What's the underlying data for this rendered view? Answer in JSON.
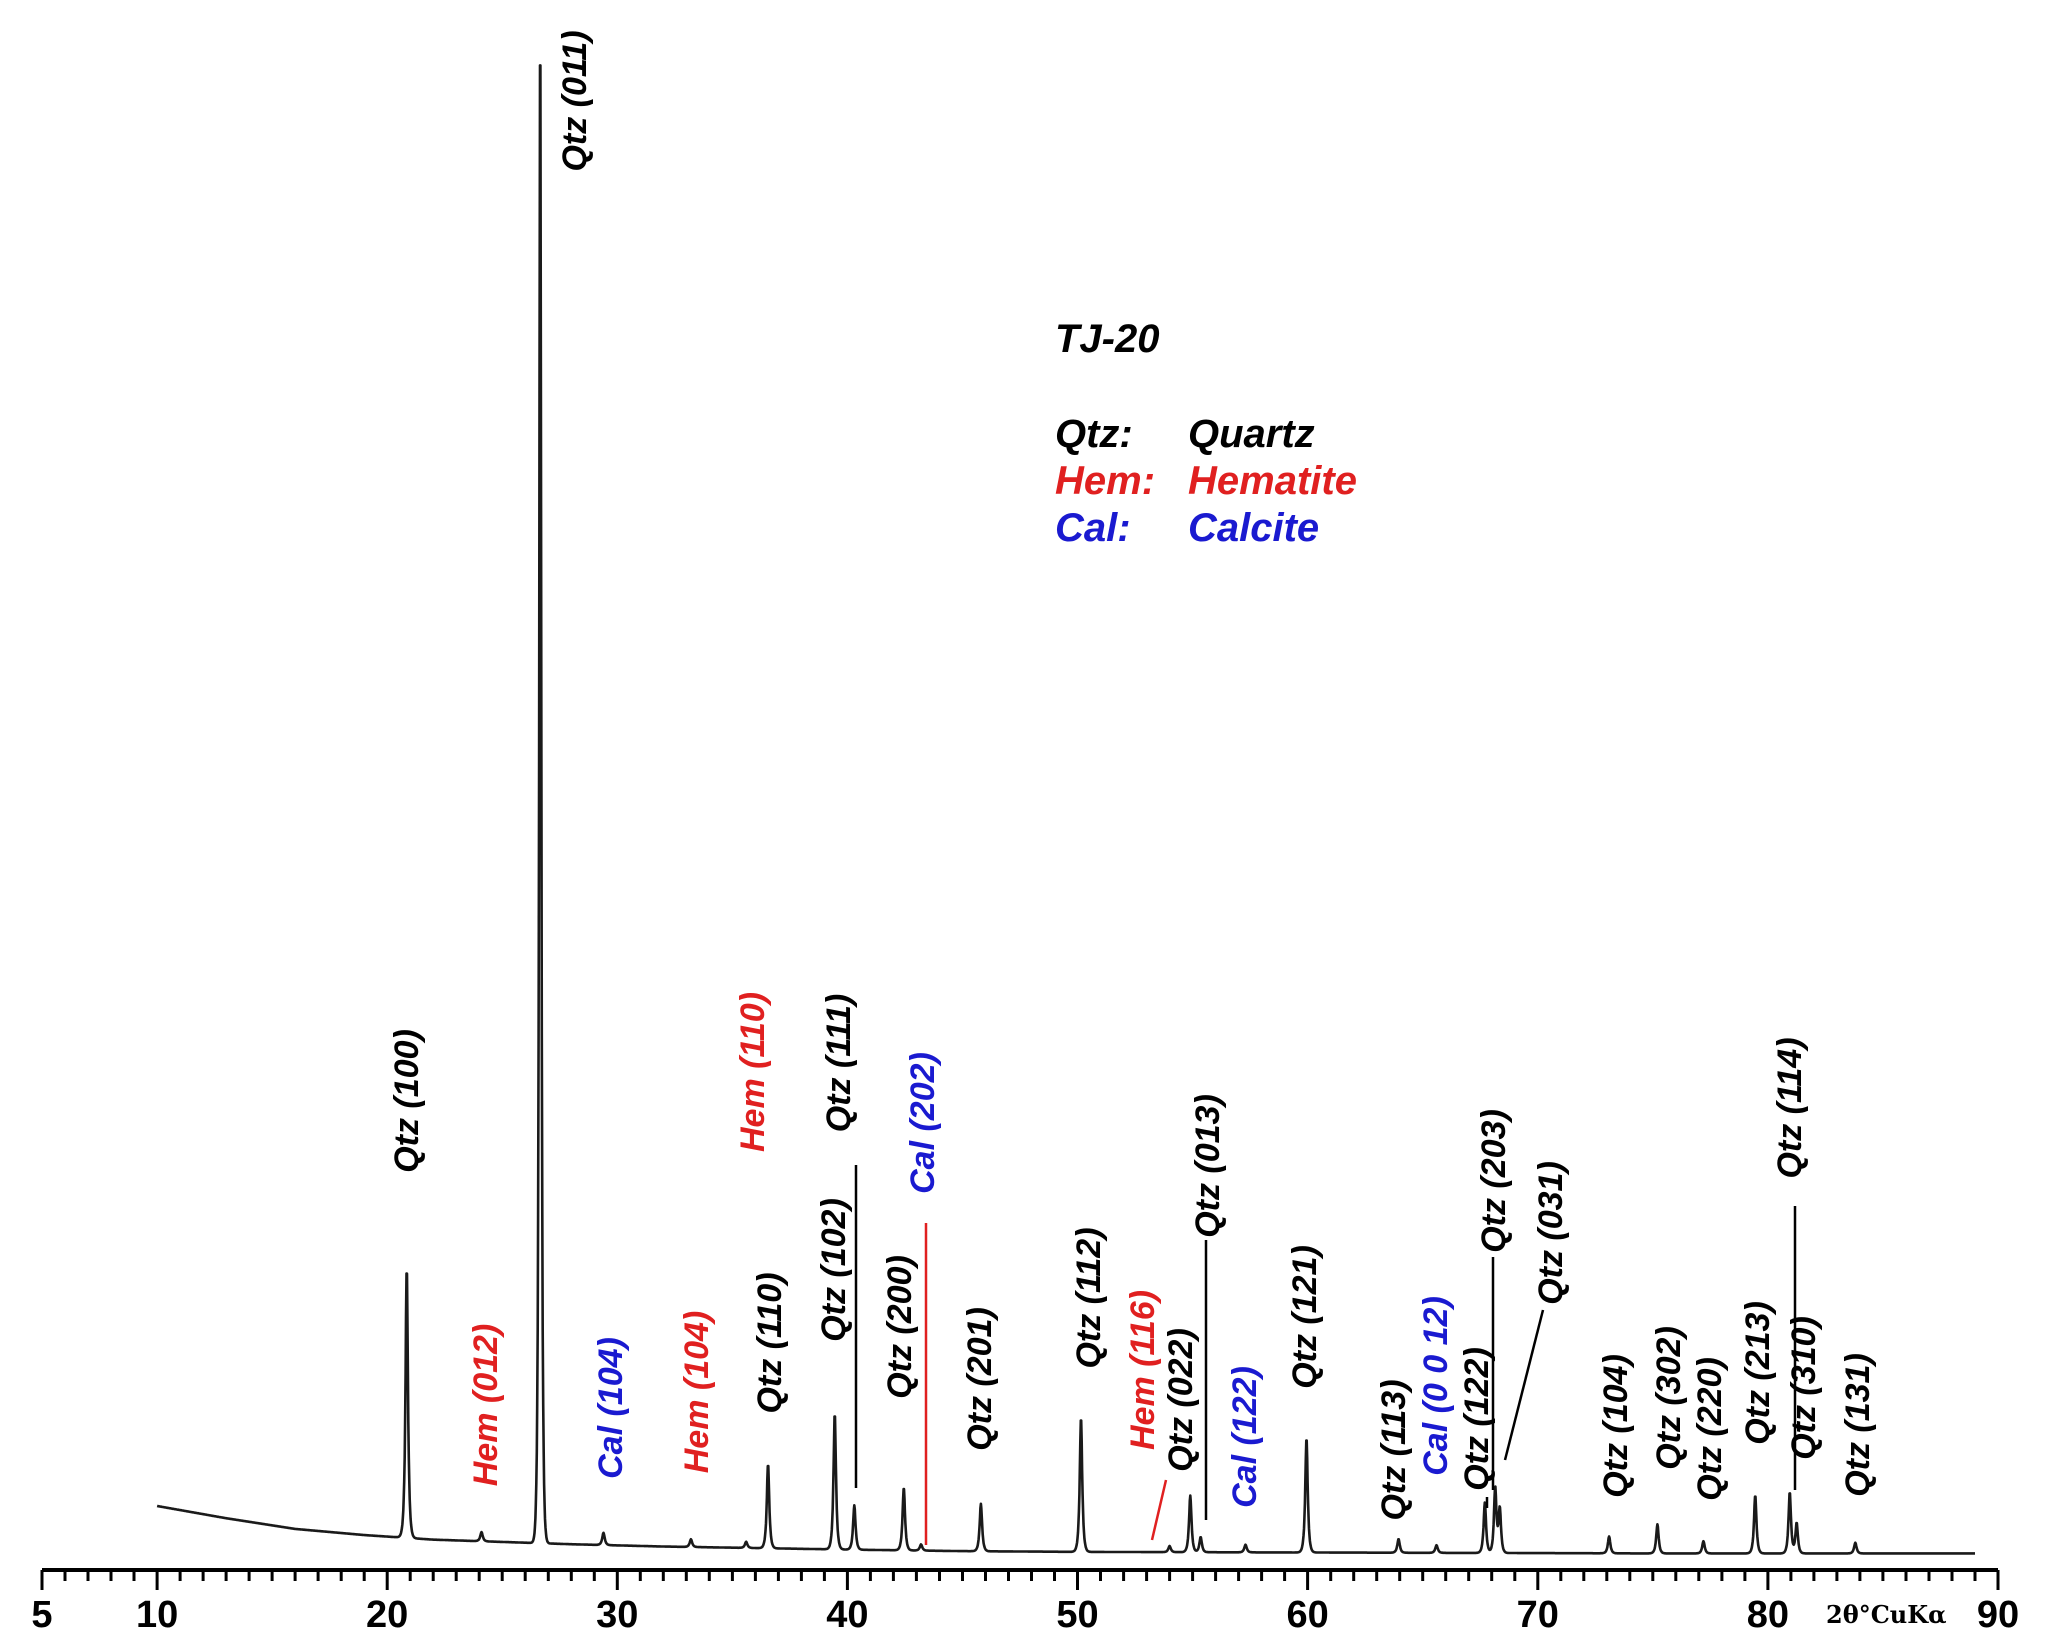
{
  "chart_data": {
    "type": "line",
    "title": "TJ-20",
    "xlabel": "2θ°CuKα",
    "ylabel": "",
    "xlim": [
      5,
      90
    ],
    "ylim": [
      0,
      100
    ],
    "x_ticks": [
      {
        "value": 5,
        "label": "5"
      },
      {
        "value": 10,
        "label": "10"
      },
      {
        "value": 20,
        "label": "20"
      },
      {
        "value": 30,
        "label": "30"
      },
      {
        "value": 40,
        "label": "40"
      },
      {
        "value": 50,
        "label": "50"
      },
      {
        "value": 60,
        "label": "60"
      },
      {
        "value": 70,
        "label": "70"
      },
      {
        "value": 80,
        "label": "80"
      },
      {
        "value": 90,
        "label": "90"
      }
    ],
    "legend": [
      {
        "abbr": "Qtz:",
        "name": "Quartz",
        "color": "#000000"
      },
      {
        "abbr": "Hem:",
        "name": "Hematite",
        "color": "#e02020"
      },
      {
        "abbr": "Cal:",
        "name": "Calcite",
        "color": "#1a1ad0"
      }
    ],
    "colors": {
      "Qtz": "#000000",
      "Hem": "#e02020",
      "Cal": "#1a1ad0"
    },
    "baseline": {
      "x": [
        10,
        13,
        16,
        19,
        22,
        25,
        28,
        32,
        36,
        40,
        45,
        50,
        55,
        60,
        65,
        70,
        75,
        80,
        85,
        89
      ],
      "y": [
        3.4,
        2.6,
        1.9,
        1.5,
        1.2,
        1.05,
        0.9,
        0.75,
        0.65,
        0.55,
        0.45,
        0.4,
        0.38,
        0.36,
        0.34,
        0.32,
        0.3,
        0.3,
        0.3,
        0.3
      ]
    },
    "series": [
      {
        "name": "TJ-20",
        "peaks": [
          {
            "x": 20.85,
            "y": 17.7
          },
          {
            "x": 24.1,
            "y": 0.6
          },
          {
            "x": 26.65,
            "y": 100
          },
          {
            "x": 29.4,
            "y": 0.8
          },
          {
            "x": 33.2,
            "y": 0.5
          },
          {
            "x": 35.6,
            "y": 0.4
          },
          {
            "x": 36.55,
            "y": 5.5
          },
          {
            "x": 39.45,
            "y": 8.9
          },
          {
            "x": 40.3,
            "y": 2.9
          },
          {
            "x": 42.45,
            "y": 4.1
          },
          {
            "x": 43.2,
            "y": 0.4
          },
          {
            "x": 45.8,
            "y": 3.1
          },
          {
            "x": 50.15,
            "y": 8.8
          },
          {
            "x": 54.0,
            "y": 0.4
          },
          {
            "x": 54.9,
            "y": 3.7
          },
          {
            "x": 55.35,
            "y": 1.0
          },
          {
            "x": 57.3,
            "y": 0.5
          },
          {
            "x": 59.95,
            "y": 7.5
          },
          {
            "x": 63.95,
            "y": 0.9
          },
          {
            "x": 65.6,
            "y": 0.5
          },
          {
            "x": 67.7,
            "y": 3.3
          },
          {
            "x": 68.15,
            "y": 4.3
          },
          {
            "x": 68.35,
            "y": 2.9
          },
          {
            "x": 73.1,
            "y": 1.1
          },
          {
            "x": 75.2,
            "y": 1.9
          },
          {
            "x": 77.2,
            "y": 0.8
          },
          {
            "x": 79.45,
            "y": 3.8
          },
          {
            "x": 80.95,
            "y": 4.0
          },
          {
            "x": 81.25,
            "y": 2.0
          },
          {
            "x": 83.8,
            "y": 0.7
          }
        ]
      }
    ],
    "annotations": [
      {
        "text": "Qtz (100)",
        "phase": "Qtz",
        "x": 20.85
      },
      {
        "text": "Hem (012)",
        "phase": "Hem",
        "x": 24.1
      },
      {
        "text": "Qtz (011)",
        "phase": "Qtz",
        "x": 26.65
      },
      {
        "text": "Cal (104)",
        "phase": "Cal",
        "x": 29.4
      },
      {
        "text": "Hem (104)",
        "phase": "Hem",
        "x": 33.2
      },
      {
        "text": "Hem (110)",
        "phase": "Hem",
        "x": 35.6
      },
      {
        "text": "Qtz (110)",
        "phase": "Qtz",
        "x": 36.55
      },
      {
        "text": "Qtz (102)",
        "phase": "Qtz",
        "x": 39.45
      },
      {
        "text": "Qtz (111)",
        "phase": "Qtz",
        "x": 40.3
      },
      {
        "text": "Qtz (200)",
        "phase": "Qtz",
        "x": 42.45
      },
      {
        "text": "Cal (202)",
        "phase": "Cal",
        "x": 43.2
      },
      {
        "text": "Qtz (201)",
        "phase": "Qtz",
        "x": 45.8
      },
      {
        "text": "Qtz (112)",
        "phase": "Qtz",
        "x": 50.15
      },
      {
        "text": "Hem (116)",
        "phase": "Hem",
        "x": 54.0
      },
      {
        "text": "Qtz (022)",
        "phase": "Qtz",
        "x": 54.9
      },
      {
        "text": "Qtz (013)",
        "phase": "Qtz",
        "x": 55.35
      },
      {
        "text": "Cal (122)",
        "phase": "Cal",
        "x": 57.3
      },
      {
        "text": "Qtz (121)",
        "phase": "Qtz",
        "x": 59.95
      },
      {
        "text": "Qtz (113)",
        "phase": "Qtz",
        "x": 63.95
      },
      {
        "text": "Cal (0 0 12)",
        "phase": "Cal",
        "x": 65.6
      },
      {
        "text": "Qtz (122)",
        "phase": "Qtz",
        "x": 67.7
      },
      {
        "text": "Qtz (203)",
        "phase": "Qtz",
        "x": 68.15
      },
      {
        "text": "Qtz (031)",
        "phase": "Qtz",
        "x": 68.35
      },
      {
        "text": "Qtz (104)",
        "phase": "Qtz",
        "x": 73.1
      },
      {
        "text": "Qtz (302)",
        "phase": "Qtz",
        "x": 75.2
      },
      {
        "text": "Qtz (220)",
        "phase": "Qtz",
        "x": 77.2
      },
      {
        "text": "Qtz (213)",
        "phase": "Qtz",
        "x": 79.45
      },
      {
        "text": "Qtz (114)",
        "phase": "Qtz",
        "x": 80.95
      },
      {
        "text": "Qtz (310)",
        "phase": "Qtz",
        "x": 81.25
      },
      {
        "text": "Qtz (131)",
        "phase": "Qtz",
        "x": 83.8
      }
    ]
  }
}
